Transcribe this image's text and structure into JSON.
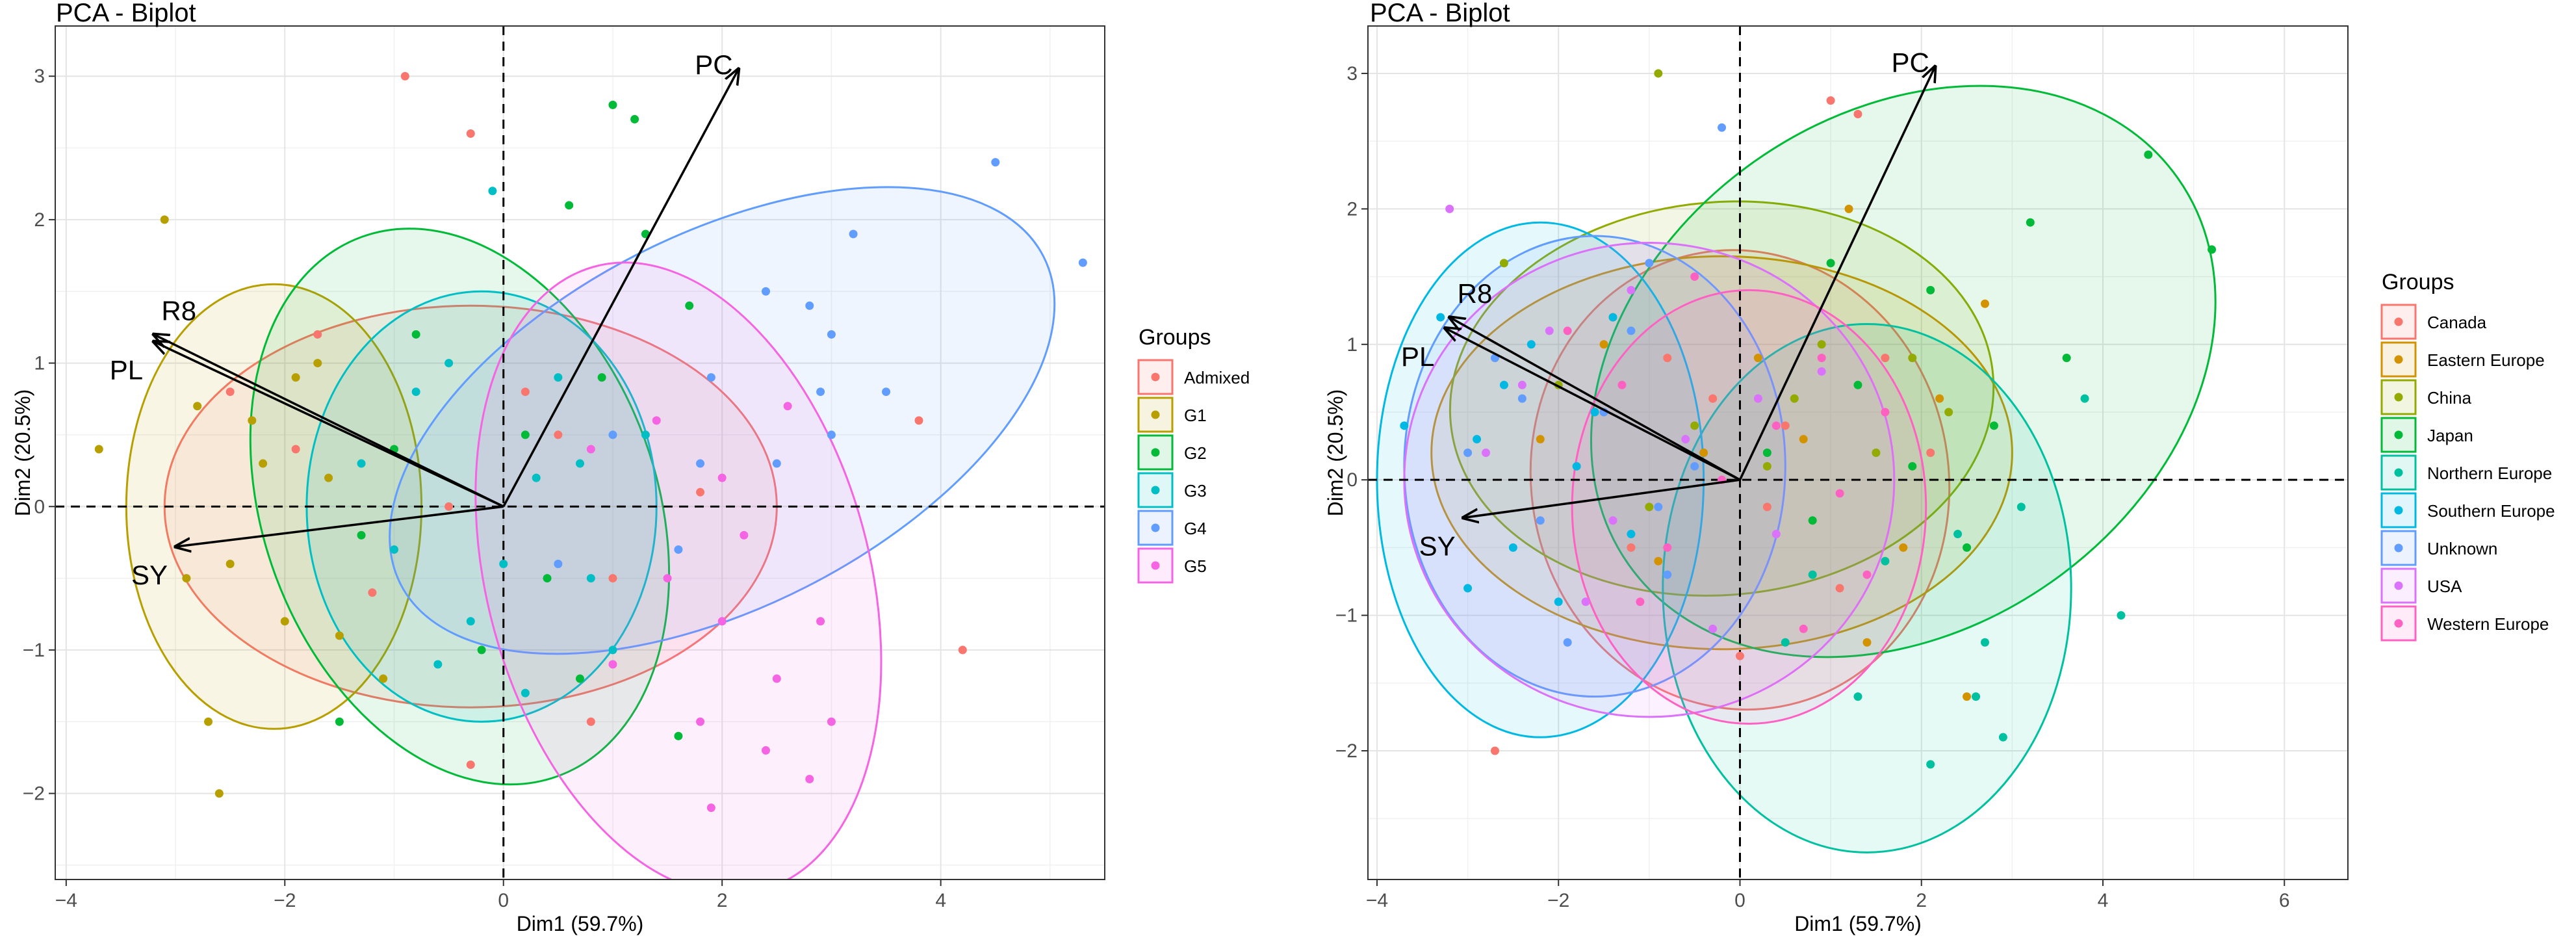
{
  "chart_data": [
    {
      "type": "scatter",
      "title": "PCA - Biplot",
      "xlabel": "Dim1 (59.7%)",
      "ylabel": "Dim2 (20.5%)",
      "xlim": [
        -4.1,
        5.5
      ],
      "ylim": [
        -2.6,
        3.35
      ],
      "xticks": [
        -4,
        -2,
        0,
        2,
        4
      ],
      "yticks": [
        -2,
        -1,
        0,
        1,
        2,
        3
      ],
      "grid": true,
      "legend_title": "Groups",
      "legend_position": "right",
      "variables": [
        {
          "name": "PC",
          "x": 2.15,
          "y": 3.05
        },
        {
          "name": "R8",
          "x": -3.2,
          "y": 1.2
        },
        {
          "name": "PL",
          "x": -3.2,
          "y": 1.15
        },
        {
          "name": "SY",
          "x": -3.0,
          "y": -0.28
        }
      ],
      "series": [
        {
          "name": "Admixed",
          "color": "#F8766D",
          "center": [
            -0.3,
            0.0
          ],
          "radii": [
            2.8,
            1.4
          ],
          "angle": 0,
          "points": [
            [
              -0.9,
              3.0
            ],
            [
              -0.3,
              2.6
            ],
            [
              -2.5,
              0.8
            ],
            [
              -1.7,
              1.2
            ],
            [
              -0.5,
              0.0
            ],
            [
              1.0,
              -0.5
            ],
            [
              0.5,
              0.5
            ],
            [
              -1.2,
              -0.6
            ],
            [
              0.2,
              0.8
            ],
            [
              1.8,
              0.1
            ],
            [
              3.8,
              0.6
            ],
            [
              4.2,
              -1.0
            ],
            [
              -0.3,
              -1.8
            ],
            [
              0.8,
              -1.5
            ],
            [
              -1.9,
              0.4
            ]
          ]
        },
        {
          "name": "G1",
          "color": "#B79F00",
          "center": [
            -2.1,
            0.0
          ],
          "radii": [
            1.35,
            1.55
          ],
          "angle": 0,
          "points": [
            [
              -3.1,
              2.0
            ],
            [
              -3.7,
              0.4
            ],
            [
              -2.9,
              -0.5
            ],
            [
              -2.5,
              -0.4
            ],
            [
              -2.2,
              0.3
            ],
            [
              -2.7,
              -1.5
            ],
            [
              -2.6,
              -2.0
            ],
            [
              -1.9,
              0.9
            ],
            [
              -2.0,
              -0.8
            ],
            [
              -1.6,
              0.2
            ],
            [
              -2.3,
              0.6
            ],
            [
              -1.5,
              -0.9
            ],
            [
              -1.1,
              -1.2
            ],
            [
              -2.8,
              0.7
            ],
            [
              -1.7,
              1.0
            ]
          ]
        },
        {
          "name": "G2",
          "color": "#00BA38",
          "center": [
            -0.4,
            0.0
          ],
          "radii": [
            1.8,
            2.0
          ],
          "angle": -20,
          "points": [
            [
              1.0,
              2.8
            ],
            [
              1.2,
              2.7
            ],
            [
              0.6,
              2.1
            ],
            [
              -1.5,
              -1.5
            ],
            [
              -1.0,
              0.4
            ],
            [
              0.2,
              0.5
            ],
            [
              1.6,
              -1.6
            ],
            [
              1.3,
              1.9
            ],
            [
              -0.8,
              1.2
            ],
            [
              0.4,
              -0.5
            ],
            [
              -1.3,
              -0.2
            ],
            [
              0.9,
              0.9
            ],
            [
              1.7,
              1.4
            ],
            [
              -0.2,
              -1.0
            ],
            [
              0.7,
              -1.2
            ]
          ]
        },
        {
          "name": "G3",
          "color": "#00BFC4",
          "center": [
            -0.2,
            0.0
          ],
          "radii": [
            1.6,
            1.5
          ],
          "angle": 0,
          "points": [
            [
              -0.1,
              2.2
            ],
            [
              -0.5,
              1.0
            ],
            [
              0.3,
              0.2
            ],
            [
              0.8,
              -0.5
            ],
            [
              -1.0,
              -0.3
            ],
            [
              0.5,
              0.9
            ],
            [
              -0.8,
              0.8
            ],
            [
              1.0,
              -1.0
            ],
            [
              -0.3,
              -0.8
            ],
            [
              0.2,
              -1.3
            ],
            [
              1.3,
              0.5
            ],
            [
              -1.3,
              0.3
            ],
            [
              0.0,
              -0.4
            ],
            [
              0.7,
              0.3
            ],
            [
              -0.6,
              -1.1
            ]
          ]
        },
        {
          "name": "G4",
          "color": "#619CFF",
          "center": [
            2.0,
            0.6
          ],
          "radii": [
            3.3,
            1.3
          ],
          "angle": -27,
          "points": [
            [
              4.5,
              2.4
            ],
            [
              5.3,
              1.7
            ],
            [
              3.2,
              1.9
            ],
            [
              2.8,
              1.4
            ],
            [
              3.5,
              0.8
            ],
            [
              2.9,
              0.8
            ],
            [
              2.4,
              1.5
            ],
            [
              3.0,
              1.2
            ],
            [
              1.8,
              0.3
            ],
            [
              1.0,
              0.5
            ],
            [
              0.5,
              -0.4
            ],
            [
              1.9,
              0.9
            ],
            [
              2.5,
              0.3
            ],
            [
              3.0,
              0.5
            ],
            [
              1.6,
              -0.3
            ]
          ]
        },
        {
          "name": "G5",
          "color": "#F564E3",
          "center": [
            1.6,
            -0.5
          ],
          "radii": [
            1.75,
            2.25
          ],
          "angle": -15,
          "points": [
            [
              2.6,
              0.7
            ],
            [
              2.0,
              -0.8
            ],
            [
              2.5,
              -1.2
            ],
            [
              3.0,
              -1.5
            ],
            [
              2.8,
              -1.9
            ],
            [
              1.8,
              -1.5
            ],
            [
              1.0,
              -1.1
            ],
            [
              1.4,
              0.6
            ],
            [
              2.2,
              -0.2
            ],
            [
              1.9,
              -2.1
            ],
            [
              2.4,
              -1.7
            ],
            [
              0.8,
              0.4
            ],
            [
              2.9,
              -0.8
            ],
            [
              1.5,
              -0.5
            ],
            [
              2.0,
              0.2
            ]
          ]
        }
      ]
    },
    {
      "type": "scatter",
      "title": "PCA - Biplot",
      "xlabel": "Dim1 (59.7%)",
      "ylabel": "Dim2 (20.5%)",
      "xlim": [
        -4.1,
        6.7
      ],
      "ylim": [
        -2.95,
        3.35
      ],
      "xticks": [
        -4,
        -2,
        0,
        2,
        4,
        6
      ],
      "yticks": [
        -2,
        -1,
        0,
        1,
        2,
        3
      ],
      "grid": true,
      "legend_title": "Groups",
      "legend_position": "right",
      "variables": [
        {
          "name": "PC",
          "x": 2.15,
          "y": 3.05
        },
        {
          "name": "R8",
          "x": -3.2,
          "y": 1.2
        },
        {
          "name": "PL",
          "x": -3.25,
          "y": 1.12
        },
        {
          "name": "SY",
          "x": -3.05,
          "y": -0.28
        }
      ],
      "series": [
        {
          "name": "Canada",
          "color": "#F8766D",
          "center": [
            0.0,
            0.0
          ],
          "radii": [
            2.3,
            1.7
          ],
          "angle": -10,
          "points": [
            [
              1.0,
              2.8
            ],
            [
              1.3,
              2.7
            ],
            [
              -2.7,
              -2.0
            ],
            [
              0.5,
              0.4
            ],
            [
              -0.3,
              0.6
            ],
            [
              1.1,
              -0.8
            ],
            [
              -1.2,
              -0.5
            ],
            [
              0.0,
              -1.3
            ],
            [
              1.6,
              0.9
            ],
            [
              -0.8,
              0.9
            ],
            [
              0.3,
              -0.2
            ],
            [
              2.1,
              0.2
            ]
          ]
        },
        {
          "name": "Eastern Europe",
          "color": "#D39200",
          "center": [
            -0.2,
            0.2
          ],
          "radii": [
            3.2,
            1.45
          ],
          "angle": 0,
          "points": [
            [
              1.2,
              2.0
            ],
            [
              2.7,
              1.3
            ],
            [
              -1.5,
              1.0
            ],
            [
              0.7,
              0.3
            ],
            [
              -0.9,
              -0.6
            ],
            [
              1.8,
              -0.5
            ],
            [
              2.5,
              -1.6
            ],
            [
              -2.2,
              0.3
            ],
            [
              0.2,
              0.9
            ],
            [
              1.4,
              -1.2
            ],
            [
              -0.4,
              0.2
            ],
            [
              2.2,
              0.6
            ]
          ]
        },
        {
          "name": "China",
          "color": "#93AA00",
          "center": [
            -0.2,
            0.6
          ],
          "radii": [
            3.0,
            1.45
          ],
          "angle": -5,
          "points": [
            [
              -0.9,
              3.0
            ],
            [
              -2.6,
              1.6
            ],
            [
              -1.4,
              1.2
            ],
            [
              0.9,
              1.0
            ],
            [
              -0.5,
              0.4
            ],
            [
              1.5,
              0.2
            ],
            [
              -2.0,
              0.7
            ],
            [
              0.3,
              0.1
            ],
            [
              2.3,
              0.5
            ],
            [
              -1.0,
              -0.2
            ],
            [
              0.6,
              0.6
            ],
            [
              1.9,
              0.9
            ]
          ]
        },
        {
          "name": "Japan",
          "color": "#00BA38",
          "center": [
            1.8,
            0.8
          ],
          "radii": [
            3.7,
            1.9
          ],
          "angle": -35,
          "points": [
            [
              4.5,
              2.4
            ],
            [
              5.2,
              1.7
            ],
            [
              3.2,
              1.9
            ],
            [
              2.1,
              1.4
            ],
            [
              1.3,
              0.7
            ],
            [
              2.8,
              0.4
            ],
            [
              0.8,
              -0.3
            ],
            [
              3.6,
              0.9
            ],
            [
              1.0,
              1.6
            ],
            [
              2.5,
              -0.5
            ],
            [
              0.3,
              0.2
            ],
            [
              1.9,
              0.1
            ]
          ]
        },
        {
          "name": "Northern Europe",
          "color": "#00C19F",
          "center": [
            1.4,
            -0.8
          ],
          "radii": [
            2.25,
            1.95
          ],
          "angle": 0,
          "points": [
            [
              3.8,
              0.6
            ],
            [
              4.2,
              -1.0
            ],
            [
              2.1,
              -2.1
            ],
            [
              2.6,
              -1.6
            ],
            [
              2.7,
              -1.2
            ],
            [
              1.3,
              -1.6
            ],
            [
              0.5,
              -1.2
            ],
            [
              2.4,
              -0.4
            ],
            [
              1.6,
              -0.6
            ],
            [
              3.1,
              -0.2
            ],
            [
              0.8,
              -0.7
            ],
            [
              2.9,
              -1.9
            ]
          ]
        },
        {
          "name": "Southern Europe",
          "color": "#00B9E3",
          "center": [
            -2.2,
            0.0
          ],
          "radii": [
            1.8,
            1.9
          ],
          "angle": 0,
          "points": [
            [
              -3.7,
              0.4
            ],
            [
              -3.3,
              1.2
            ],
            [
              -2.9,
              0.3
            ],
            [
              -2.5,
              -0.5
            ],
            [
              -2.0,
              -0.9
            ],
            [
              -1.6,
              0.5
            ],
            [
              -2.3,
              1.0
            ],
            [
              -1.2,
              -0.4
            ],
            [
              -3.0,
              -0.8
            ],
            [
              -1.8,
              0.1
            ],
            [
              -2.6,
              0.7
            ],
            [
              -1.4,
              1.2
            ]
          ]
        },
        {
          "name": "Unknown",
          "color": "#619CFF",
          "center": [
            -1.6,
            0.1
          ],
          "radii": [
            2.1,
            1.7
          ],
          "angle": 0,
          "points": [
            [
              -0.2,
              2.6
            ],
            [
              -1.0,
              1.6
            ],
            [
              -2.7,
              0.9
            ],
            [
              -2.2,
              -0.3
            ],
            [
              -1.5,
              0.5
            ],
            [
              -0.8,
              -0.7
            ],
            [
              -3.0,
              0.2
            ],
            [
              -1.9,
              -1.2
            ],
            [
              -0.5,
              0.1
            ],
            [
              -1.2,
              1.1
            ],
            [
              -2.4,
              0.6
            ],
            [
              -0.9,
              -0.2
            ]
          ]
        },
        {
          "name": "USA",
          "color": "#DB72FB",
          "center": [
            -1.0,
            0.0
          ],
          "radii": [
            2.7,
            1.75
          ],
          "angle": 0,
          "points": [
            [
              -3.2,
              2.0
            ],
            [
              -1.2,
              1.4
            ],
            [
              -2.4,
              0.7
            ],
            [
              -0.6,
              0.3
            ],
            [
              0.4,
              -0.4
            ],
            [
              -1.7,
              -0.9
            ],
            [
              -2.8,
              0.2
            ],
            [
              0.9,
              0.8
            ],
            [
              -0.3,
              -1.1
            ],
            [
              -1.4,
              -0.3
            ],
            [
              0.2,
              0.6
            ],
            [
              -2.1,
              1.1
            ]
          ]
        },
        {
          "name": "Western Europe",
          "color": "#FF61C3",
          "center": [
            0.1,
            -0.2
          ],
          "radii": [
            1.95,
            1.6
          ],
          "angle": 0,
          "points": [
            [
              -0.5,
              1.5
            ],
            [
              -1.9,
              1.1
            ],
            [
              -1.3,
              0.7
            ],
            [
              0.4,
              0.4
            ],
            [
              1.1,
              -0.1
            ],
            [
              -0.8,
              -0.5
            ],
            [
              0.7,
              -1.1
            ],
            [
              1.6,
              0.5
            ],
            [
              -0.2,
              0.0
            ],
            [
              -1.1,
              -0.9
            ],
            [
              0.9,
              0.9
            ],
            [
              1.4,
              -0.7
            ]
          ]
        }
      ]
    }
  ]
}
